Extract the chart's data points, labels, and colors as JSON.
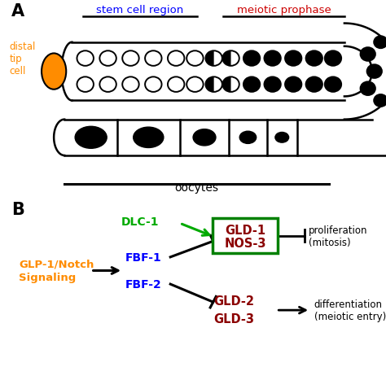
{
  "panel_a_label": "A",
  "panel_b_label": "B",
  "stem_cell_region_label": "stem cell region",
  "meiotic_prophase_label": "meiotic prophase",
  "distal_tip_cell_label": "distal\ntip\ncell",
  "oocytes_label": "oocytes",
  "dlc1_label": "DLC-1",
  "glp1_label": "GLP-1/Notch\nSignaling",
  "fbf1_label": "FBF-1",
  "fbf2_label": "FBF-2",
  "gld1_label": "GLD-1",
  "nos3_label": "NOS-3",
  "gld2_label": "GLD-2",
  "gld3_label": "GLD-3",
  "proliferation_label": "proliferation\n(mitosis)",
  "differentiation_label": "differentiation\n(meiotic entry)",
  "color_blue": "#0000FF",
  "color_orange": "#FF8C00",
  "color_green": "#00AA00",
  "color_dark_red": "#8B0000",
  "color_black": "#000000",
  "color_white": "#FFFFFF",
  "color_bg": "#FFFFFF",
  "color_gld_box_border": "#008000",
  "color_red_label": "#CC0000"
}
